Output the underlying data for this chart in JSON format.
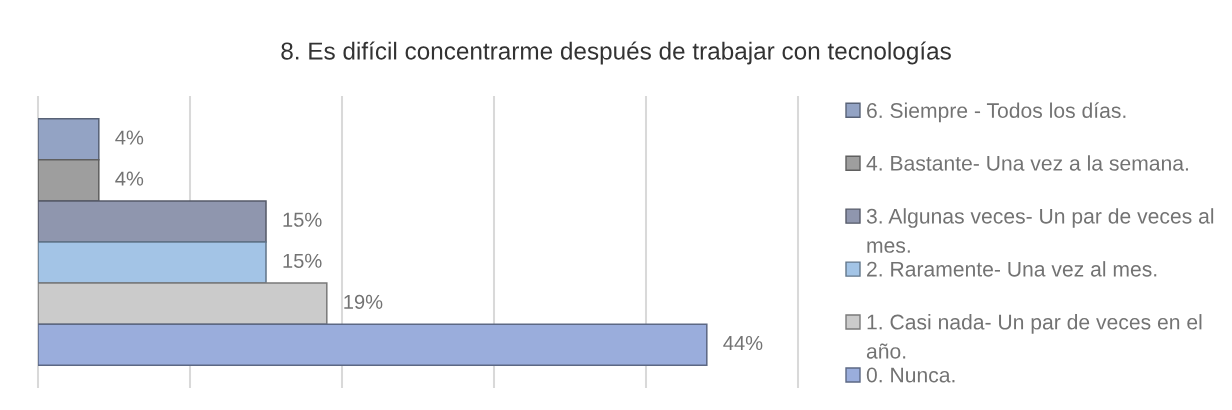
{
  "chart_data": {
    "type": "bar",
    "orientation": "horizontal",
    "title": "8. Es difícil concentrarme después de trabajar con tecnologías",
    "categories": [
      null
    ],
    "series": [
      {
        "name": "6. Siempre - Todos los días.",
        "color": "#93a3c4",
        "values": [
          4
        ],
        "value_labels": [
          "4%"
        ]
      },
      {
        "name": "4. Bastante- Una vez a la semana.",
        "color": "#9e9e9e",
        "values": [
          4
        ],
        "value_labels": [
          "4%"
        ]
      },
      {
        "name": "3. Algunas veces- Un par de veces al mes.",
        "color": "#8f96ae",
        "values": [
          15
        ],
        "value_labels": [
          "15%"
        ]
      },
      {
        "name": "2. Raramente- Una vez al mes.",
        "color": "#a3c4e6",
        "values": [
          15
        ],
        "value_labels": [
          "15%"
        ]
      },
      {
        "name": "1. Casi nada- Un par de veces en el año.",
        "color": "#cbcbcb",
        "values": [
          19
        ],
        "value_labels": [
          "19%"
        ]
      },
      {
        "name": "0. Nunca.",
        "color": "#9aaddc",
        "values": [
          44
        ],
        "value_labels": [
          "44%"
        ]
      }
    ],
    "xlim": [
      0,
      50
    ],
    "xticks": [
      0,
      10,
      20,
      30,
      40,
      50
    ],
    "grid": "x",
    "legend": "right",
    "tick_labels": false
  }
}
